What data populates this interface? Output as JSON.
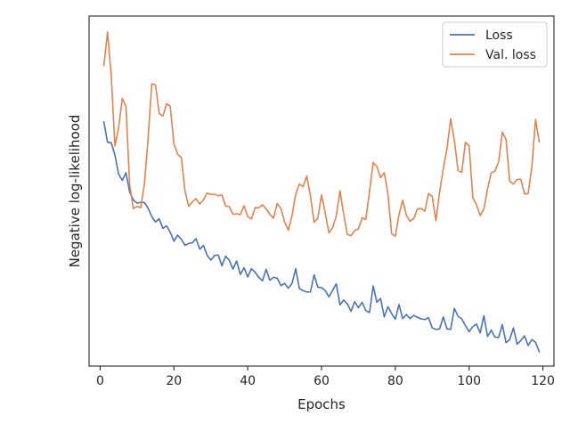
{
  "chart_data": {
    "type": "line",
    "title": "",
    "xlabel": "Epochs",
    "ylabel": "Negative log-likelihood",
    "xlim": [
      -3,
      123
    ],
    "ylim": [
      0,
      1
    ],
    "x_ticks": [
      0,
      20,
      40,
      60,
      80,
      100,
      120
    ],
    "y_ticks_shown": false,
    "grid": false,
    "legend_position": "top-right",
    "series": [
      {
        "name": "Loss",
        "color": "#4c72b0",
        "x": [
          1,
          2,
          3,
          4,
          5,
          6,
          7,
          8,
          9,
          10,
          11,
          12,
          13,
          14,
          15,
          16,
          17,
          18,
          19,
          20,
          21,
          22,
          23,
          24,
          25,
          26,
          27,
          28,
          29,
          30,
          31,
          32,
          33,
          34,
          35,
          36,
          37,
          38,
          39,
          40,
          41,
          42,
          43,
          44,
          45,
          46,
          47,
          48,
          49,
          50,
          51,
          52,
          53,
          54,
          55,
          56,
          57,
          58,
          59,
          60,
          61,
          62,
          63,
          64,
          65,
          66,
          67,
          68,
          69,
          70,
          71,
          72,
          73,
          74,
          75,
          76,
          77,
          78,
          79,
          80,
          81,
          82,
          83,
          84,
          85,
          86,
          87,
          88,
          89,
          90,
          91,
          92,
          93,
          94,
          95,
          96,
          97,
          98,
          99,
          100,
          101,
          102,
          103,
          104,
          105,
          106,
          107,
          108,
          109,
          110,
          111,
          112,
          113,
          114,
          115,
          116,
          117,
          118,
          119
        ],
        "values": [
          0.72,
          0.655,
          0.654,
          0.616,
          0.556,
          0.536,
          0.56,
          0.5,
          0.475,
          0.465,
          0.467,
          0.467,
          0.449,
          0.423,
          0.406,
          0.416,
          0.386,
          0.394,
          0.374,
          0.346,
          0.365,
          0.352,
          0.333,
          0.339,
          0.341,
          0.354,
          0.321,
          0.333,
          0.302,
          0.287,
          0.301,
          0.303,
          0.269,
          0.299,
          0.286,
          0.259,
          0.284,
          0.242,
          0.263,
          0.234,
          0.26,
          0.249,
          0.233,
          0.222,
          0.258,
          0.224,
          0.233,
          0.23,
          0.207,
          0.214,
          0.199,
          0.214,
          0.26,
          0.198,
          0.191,
          0.187,
          0.187,
          0.241,
          0.202,
          0.201,
          0.192,
          0.172,
          0.192,
          0.213,
          0.147,
          0.162,
          0.15,
          0.127,
          0.157,
          0.138,
          0.155,
          0.129,
          0.123,
          0.206,
          0.155,
          0.167,
          0.109,
          0.141,
          0.12,
          0.102,
          0.148,
          0.104,
          0.117,
          0.104,
          0.114,
          0.108,
          0.103,
          0.101,
          0.107,
          0.075,
          0.07,
          0.072,
          0.109,
          0.072,
          0.07,
          0.136,
          0.111,
          0.103,
          0.082,
          0.063,
          0.079,
          0.087,
          0.059,
          0.113,
          0.048,
          0.068,
          0.046,
          0.045,
          0.085,
          0.029,
          0.038,
          0.075,
          0.024,
          0.035,
          0.05,
          0.02,
          0.038,
          0.03,
          0.0
        ]
      },
      {
        "name": "Val. loss",
        "color": "#dd8452",
        "x": [
          1,
          2,
          3,
          4,
          5,
          6,
          7,
          8,
          9,
          10,
          11,
          12,
          13,
          14,
          15,
          16,
          17,
          18,
          19,
          20,
          21,
          22,
          23,
          24,
          25,
          26,
          27,
          28,
          29,
          30,
          31,
          32,
          33,
          34,
          35,
          36,
          37,
          38,
          39,
          40,
          41,
          42,
          43,
          44,
          45,
          46,
          47,
          48,
          49,
          50,
          51,
          52,
          53,
          54,
          55,
          56,
          57,
          58,
          59,
          60,
          61,
          62,
          63,
          64,
          65,
          66,
          67,
          68,
          69,
          70,
          71,
          72,
          73,
          74,
          75,
          76,
          77,
          78,
          79,
          80,
          81,
          82,
          83,
          84,
          85,
          86,
          87,
          88,
          89,
          90,
          91,
          92,
          93,
          94,
          95,
          96,
          97,
          98,
          99,
          100,
          101,
          102,
          103,
          104,
          105,
          106,
          107,
          108,
          109,
          110,
          111,
          112,
          113,
          114,
          115,
          116,
          117,
          118,
          119
        ],
        "values": [
          0.895,
          1.0,
          0.866,
          0.644,
          0.7,
          0.793,
          0.767,
          0.522,
          0.448,
          0.455,
          0.451,
          0.526,
          0.668,
          0.838,
          0.835,
          0.746,
          0.737,
          0.776,
          0.768,
          0.65,
          0.618,
          0.608,
          0.503,
          0.455,
          0.469,
          0.479,
          0.462,
          0.475,
          0.497,
          0.492,
          0.493,
          0.488,
          0.491,
          0.456,
          0.454,
          0.43,
          0.432,
          0.429,
          0.457,
          0.423,
          0.415,
          0.451,
          0.45,
          0.46,
          0.447,
          0.43,
          0.418,
          0.464,
          0.448,
          0.406,
          0.38,
          0.426,
          0.493,
          0.525,
          0.516,
          0.55,
          0.487,
          0.405,
          0.418,
          0.491,
          0.434,
          0.372,
          0.388,
          0.425,
          0.504,
          0.43,
          0.367,
          0.363,
          0.38,
          0.384,
          0.419,
          0.414,
          0.501,
          0.592,
          0.579,
          0.545,
          0.56,
          0.494,
          0.369,
          0.362,
          0.429,
          0.474,
          0.427,
          0.408,
          0.417,
          0.447,
          0.448,
          0.44,
          0.495,
          0.486,
          0.41,
          0.499,
          0.573,
          0.635,
          0.729,
          0.661,
          0.567,
          0.561,
          0.655,
          0.645,
          0.482,
          0.46,
          0.426,
          0.447,
          0.51,
          0.56,
          0.565,
          0.594,
          0.687,
          0.664,
          0.533,
          0.525,
          0.539,
          0.54,
          0.494,
          0.495,
          0.578,
          0.727,
          0.656
        ]
      }
    ]
  }
}
